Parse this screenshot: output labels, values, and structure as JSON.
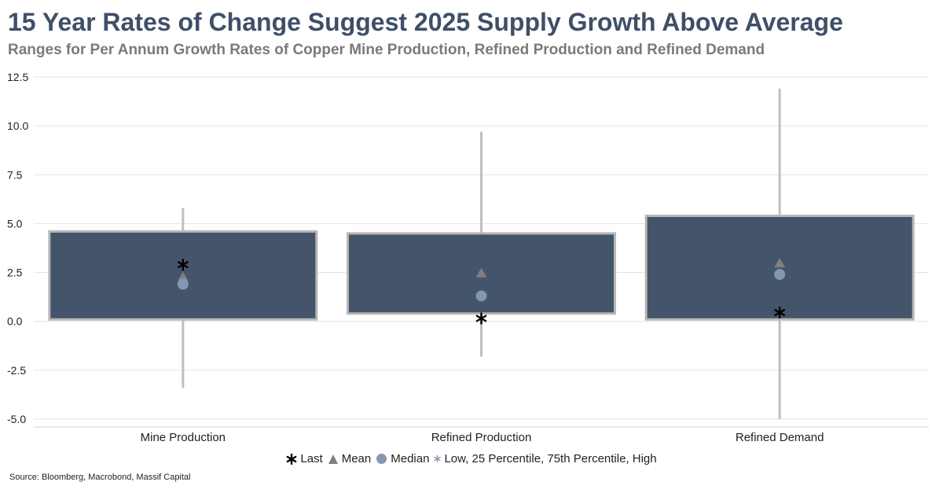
{
  "header": {
    "title": "15 Year Rates of Change Suggest 2025 Supply Growth Above Average",
    "subtitle": "Ranges for Per Annum Growth Rates of Copper Mine Production, Refined Production and Refined Demand"
  },
  "footer": {
    "source": "Source: Bloomberg, Macrobond, Massif Capital"
  },
  "legend": {
    "last": "Last",
    "mean": "Mean",
    "median": "Median",
    "range": "Low, 25 Percentile, 75th Percentile, High"
  },
  "colors": {
    "box": "#44546a",
    "box_border": "#b7b7b7",
    "whisker": "#bfbfbf",
    "mean": "#7f7f7f",
    "median": "#8596b0",
    "last": "#000000",
    "grid": "#e3e3e3"
  },
  "chart_data": {
    "type": "box",
    "title": "15 Year Rates of Change Suggest 2025 Supply Growth Above Average",
    "xlabel": "",
    "ylabel": "",
    "ylim": [
      -5.0,
      12.5
    ],
    "yticks": [
      12.5,
      10.0,
      7.5,
      5.0,
      2.5,
      0.0,
      -2.5,
      -5.0
    ],
    "ytick_labels": [
      "12.5",
      "10.0",
      "7.5",
      "5.0",
      "2.5",
      "0.0",
      "-2.5",
      "-5.0"
    ],
    "grid": true,
    "legend_position": "bottom",
    "categories": [
      "Mine Production",
      "Refined Production",
      "Refined Demand"
    ],
    "series": [
      {
        "name": "Low",
        "values": [
          -3.4,
          -1.8,
          -5.0
        ]
      },
      {
        "name": "25 Percentile",
        "values": [
          0.1,
          0.4,
          0.1
        ]
      },
      {
        "name": "75th Percentile",
        "values": [
          4.6,
          4.5,
          5.4
        ]
      },
      {
        "name": "High",
        "values": [
          5.8,
          9.7,
          11.9
        ]
      },
      {
        "name": "Mean",
        "values": [
          2.3,
          2.5,
          3.0
        ]
      },
      {
        "name": "Median",
        "values": [
          1.9,
          1.3,
          2.4
        ]
      },
      {
        "name": "Last",
        "values": [
          2.9,
          0.15,
          0.45
        ]
      }
    ]
  }
}
